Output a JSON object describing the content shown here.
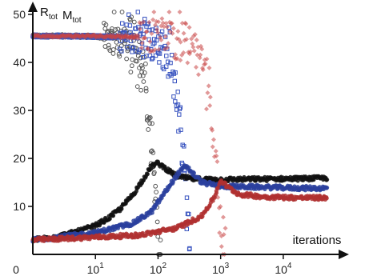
{
  "chart_data": {
    "type": "scatter",
    "title": "",
    "ylabel_parts": [
      {
        "base": "R",
        "sub": "tot"
      },
      {
        "base": "M",
        "sub": "tot"
      }
    ],
    "xlabel": "iterations",
    "x_scale": "log",
    "xlim": [
      1,
      70000
    ],
    "ylim": [
      0,
      50
    ],
    "x_ticks": [
      {
        "value": 1,
        "base": "0",
        "exp": ""
      },
      {
        "value": 10,
        "base": "10",
        "exp": "1"
      },
      {
        "value": 100,
        "base": "10",
        "exp": "2"
      },
      {
        "value": 1000,
        "base": "10",
        "exp": "3"
      },
      {
        "value": 10000,
        "base": "10",
        "exp": "4"
      }
    ],
    "y_ticks": [
      10,
      20,
      30,
      40,
      50
    ],
    "grid": false,
    "legend": "none",
    "series": [
      {
        "kind": "R_tot",
        "color": "#111111",
        "marker": "filled-circle",
        "points": [
          [
            1,
            3
          ],
          [
            3,
            4
          ],
          [
            6,
            5
          ],
          [
            10,
            6
          ],
          [
            16,
            7.5
          ],
          [
            25,
            9.5
          ],
          [
            40,
            12.5
          ],
          [
            60,
            16
          ],
          [
            80,
            18.5
          ],
          [
            100,
            19
          ],
          [
            130,
            18
          ],
          [
            170,
            16.8
          ],
          [
            250,
            16
          ],
          [
            400,
            15.7
          ],
          [
            1000,
            15.6
          ],
          [
            5000,
            15.7
          ],
          [
            20000,
            15.8
          ],
          [
            50000,
            15.9
          ]
        ]
      },
      {
        "kind": "M_tot",
        "color": "#555555",
        "marker": "open-circle",
        "points": [
          [
            1,
            45.5
          ],
          [
            3,
            45.5
          ],
          [
            10,
            45.4
          ],
          [
            20,
            45
          ],
          [
            30,
            44
          ],
          [
            45,
            40
          ],
          [
            60,
            35
          ],
          [
            70,
            28
          ],
          [
            80,
            20
          ],
          [
            90,
            10
          ],
          [
            100,
            3
          ],
          [
            110,
            0
          ]
        ]
      },
      {
        "kind": "R_tot",
        "color": "#2a3f9e",
        "marker": "filled-circle",
        "points": [
          [
            1,
            3
          ],
          [
            10,
            4.5
          ],
          [
            40,
            6.5
          ],
          [
            80,
            9
          ],
          [
            130,
            13
          ],
          [
            200,
            16.5
          ],
          [
            280,
            18.5
          ],
          [
            350,
            17
          ],
          [
            500,
            15
          ],
          [
            1000,
            14.2
          ],
          [
            5000,
            14
          ],
          [
            20000,
            13.8
          ],
          [
            50000,
            13.8
          ]
        ]
      },
      {
        "kind": "M_tot",
        "color": "#3a55c0",
        "marker": "open-square",
        "points": [
          [
            1,
            45.5
          ],
          [
            5,
            45.5
          ],
          [
            20,
            45.3
          ],
          [
            50,
            45
          ],
          [
            100,
            44
          ],
          [
            150,
            40
          ],
          [
            200,
            33
          ],
          [
            250,
            22
          ],
          [
            280,
            12
          ],
          [
            300,
            4
          ],
          [
            320,
            0
          ]
        ]
      },
      {
        "kind": "R_tot",
        "color": "#b03030",
        "marker": "filled-circle",
        "points": [
          [
            1,
            3
          ],
          [
            50,
            4
          ],
          [
            200,
            5.5
          ],
          [
            500,
            8
          ],
          [
            800,
            12
          ],
          [
            1000,
            15.5
          ],
          [
            1300,
            14
          ],
          [
            2000,
            12.5
          ],
          [
            5000,
            12
          ],
          [
            20000,
            11.8
          ],
          [
            50000,
            11.8
          ]
        ]
      },
      {
        "kind": "M_tot",
        "color": "#c84545",
        "marker": "filled-diamond",
        "points": [
          [
            1,
            45.5
          ],
          [
            10,
            45.5
          ],
          [
            100,
            45.3
          ],
          [
            300,
            44
          ],
          [
            500,
            40
          ],
          [
            700,
            30
          ],
          [
            850,
            18
          ],
          [
            950,
            8
          ],
          [
            1050,
            1
          ],
          [
            1200,
            0
          ]
        ]
      }
    ]
  }
}
